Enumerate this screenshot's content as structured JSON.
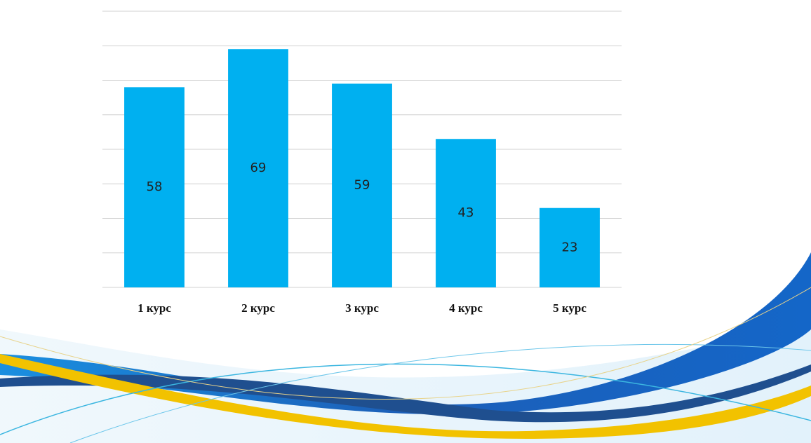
{
  "chart_data": {
    "type": "bar",
    "categories": [
      "1 курс",
      "2 курс",
      "3 курс",
      "4 курс",
      "5 курс"
    ],
    "values": [
      58,
      69,
      59,
      43,
      23
    ],
    "color": "#00b0f0",
    "ylim": [
      0,
      80
    ],
    "yticks": [
      0,
      10,
      20,
      30,
      40,
      50,
      60,
      70,
      80
    ],
    "grid": true
  }
}
